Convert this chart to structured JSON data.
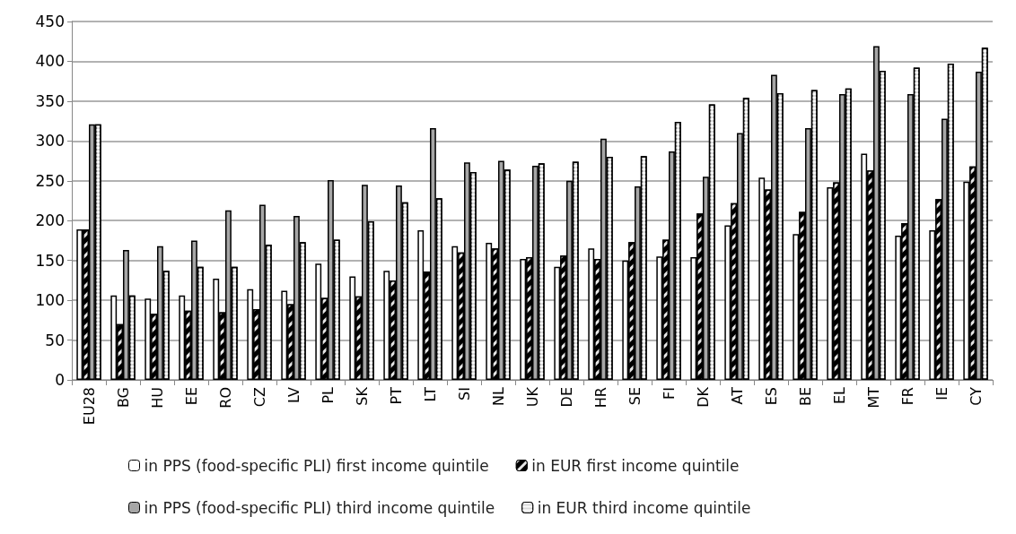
{
  "chart_data": {
    "type": "bar",
    "categories": [
      "EU28",
      "BG",
      "HU",
      "EE",
      "RO",
      "CZ",
      "LV",
      "PL",
      "SK",
      "PT",
      "LT",
      "SI",
      "NL",
      "UK",
      "DE",
      "HR",
      "SE",
      "FI",
      "DK",
      "AT",
      "ES",
      "BE",
      "EL",
      "MT",
      "FR",
      "IE",
      "CY"
    ],
    "series": [
      {
        "name": "in PPS (food-specific PLI) first income quintile",
        "color": "#ffffff",
        "values": [
          189,
          106,
          102,
          106,
          127,
          114,
          112,
          146,
          130,
          137,
          188,
          168,
          172,
          152,
          142,
          165,
          150,
          155,
          154,
          194,
          254,
          183,
          242,
          284,
          181,
          188,
          249
        ]
      },
      {
        "name": "in EUR first income quintile",
        "color": "#000000",
        "values": [
          189,
          70,
          83,
          87,
          85,
          89,
          95,
          103,
          105,
          125,
          136,
          160,
          165,
          154,
          156,
          152,
          173,
          176,
          209,
          222,
          239,
          211,
          248,
          263,
          197,
          227,
          268
        ]
      },
      {
        "name": "in PPS (food-specific PLI) third income quintile",
        "color": "#a6a6a6",
        "values": [
          321,
          163,
          168,
          175,
          213,
          220,
          206,
          251,
          245,
          244,
          316,
          273,
          275,
          269,
          250,
          303,
          243,
          287,
          255,
          310,
          383,
          316,
          359,
          419,
          359,
          328,
          387
        ]
      },
      {
        "name": "in EUR third income quintile",
        "color": "#d9d9d9",
        "values": [
          321,
          106,
          137,
          142,
          142,
          170,
          173,
          176,
          199,
          223,
          228,
          261,
          264,
          272,
          274,
          280,
          281,
          324,
          346,
          354,
          360,
          364,
          366,
          388,
          392,
          397,
          417
        ]
      }
    ],
    "ylim": [
      0,
      450
    ],
    "yticks": [
      0,
      50,
      100,
      150,
      200,
      250,
      300,
      350,
      400,
      450
    ],
    "grid": "y",
    "legend": "bottom"
  }
}
